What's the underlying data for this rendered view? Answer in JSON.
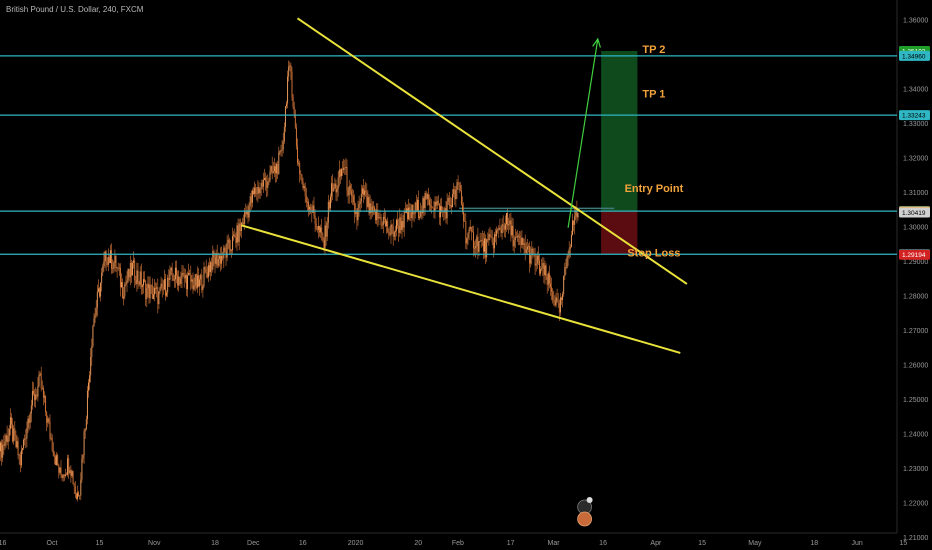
{
  "header": {
    "symbol_title": "British Pound / U.S. Dollar, 240, FXCM"
  },
  "colors": {
    "background": "#000000",
    "candle": "#d9793a",
    "level_line": "#2fb7c4",
    "trend_line": "#e8e23a",
    "forecast_arrow": "#3fcf3f",
    "target_zone": "#0e4a1c",
    "stop_zone": "#5a0c10",
    "annotation": "#f2a33a"
  },
  "chart_data": {
    "type": "candlestick",
    "title": "British Pound / U.S. Dollar, 240, FXCM",
    "xlabel": "",
    "ylabel": "",
    "ylim": [
      1.2055,
      1.3675
    ],
    "x_tick_labels": [
      {
        "label": "16",
        "x": 0.6
      },
      {
        "label": "Oct",
        "x": 15.6
      },
      {
        "label": "15",
        "x": 30
      },
      {
        "label": "Nov",
        "x": 46.6
      },
      {
        "label": "18",
        "x": 65
      },
      {
        "label": "Dec",
        "x": 76.6
      },
      {
        "label": "16",
        "x": 91.6
      },
      {
        "label": "2020",
        "x": 107.6
      },
      {
        "label": "20",
        "x": 126.6
      },
      {
        "label": "Feb",
        "x": 138.6
      },
      {
        "label": "17",
        "x": 154.6
      },
      {
        "label": "Mar",
        "x": 167.6
      },
      {
        "label": "16",
        "x": 182.6
      },
      {
        "label": "Apr",
        "x": 198.6
      },
      {
        "label": "15",
        "x": 212.6
      },
      {
        "label": "May",
        "x": 228.6
      },
      {
        "label": "18",
        "x": 246.6
      },
      {
        "label": "Jun",
        "x": 259.6
      },
      {
        "label": "15",
        "x": 273.6
      }
    ],
    "y_tick_labels": [
      "1.36000",
      "1.35000",
      "1.34000",
      "1.33000",
      "1.32000",
      "1.31000",
      "1.30000",
      "1.29000",
      "1.28000",
      "1.27000",
      "1.26000",
      "1.25000",
      "1.24000",
      "1.23000",
      "1.22000",
      "1.21000"
    ],
    "y_ticks": [
      1.36,
      1.35,
      1.34,
      1.33,
      1.32,
      1.31,
      1.3,
      1.29,
      1.28,
      1.27,
      1.26,
      1.25,
      1.24,
      1.23,
      1.22,
      1.21
    ],
    "price_anchors": [
      [
        0,
        1.235
      ],
      [
        3,
        1.242
      ],
      [
        6,
        1.232
      ],
      [
        9,
        1.248
      ],
      [
        12,
        1.255
      ],
      [
        15,
        1.24
      ],
      [
        18,
        1.228
      ],
      [
        21,
        1.232
      ],
      [
        23,
        1.222
      ],
      [
        24,
        1.225
      ],
      [
        26,
        1.247
      ],
      [
        28,
        1.272
      ],
      [
        30,
        1.282
      ],
      [
        32,
        1.292
      ],
      [
        35,
        1.289
      ],
      [
        37,
        1.282
      ],
      [
        40,
        1.288
      ],
      [
        44,
        1.282
      ],
      [
        48,
        1.28
      ],
      [
        52,
        1.286
      ],
      [
        56,
        1.285
      ],
      [
        60,
        1.283
      ],
      [
        64,
        1.29
      ],
      [
        68,
        1.292
      ],
      [
        72,
        1.298
      ],
      [
        74,
        1.303
      ],
      [
        77,
        1.31
      ],
      [
        80,
        1.313
      ],
      [
        83,
        1.316
      ],
      [
        85,
        1.32
      ],
      [
        86,
        1.33
      ],
      [
        87,
        1.343
      ],
      [
        88,
        1.345
      ],
      [
        89,
        1.332
      ],
      [
        90,
        1.32
      ],
      [
        92,
        1.31
      ],
      [
        94,
        1.306
      ],
      [
        96,
        1.3
      ],
      [
        98,
        1.295
      ],
      [
        100,
        1.31
      ],
      [
        102,
        1.312
      ],
      [
        104,
        1.318
      ],
      [
        106,
        1.308
      ],
      [
        108,
        1.303
      ],
      [
        110,
        1.31
      ],
      [
        112,
        1.304
      ],
      [
        116,
        1.302
      ],
      [
        118,
        1.298
      ],
      [
        122,
        1.302
      ],
      [
        126,
        1.305
      ],
      [
        130,
        1.308
      ],
      [
        134,
        1.304
      ],
      [
        137,
        1.308
      ],
      [
        139,
        1.312
      ],
      [
        141,
        1.298
      ],
      [
        144,
        1.296
      ],
      [
        147,
        1.294
      ],
      [
        150,
        1.297
      ],
      [
        153,
        1.302
      ],
      [
        156,
        1.296
      ],
      [
        159,
        1.294
      ],
      [
        162,
        1.29
      ],
      [
        165,
        1.286
      ],
      [
        168,
        1.279
      ],
      [
        169,
        1.275
      ],
      [
        170,
        1.278
      ],
      [
        171,
        1.286
      ],
      [
        172,
        1.294
      ],
      [
        173,
        1.298
      ],
      [
        174,
        1.303
      ],
      [
        175,
        1.3045
      ]
    ],
    "last_candle_index": 175,
    "horizontal_levels": [
      {
        "name": "TP 2",
        "price": 1.3496
      },
      {
        "name": "TP 1",
        "price": 1.33243
      },
      {
        "name": "Entry Point",
        "price": 1.3046
      },
      {
        "name": "Stop Loss",
        "price": 1.2921
      }
    ],
    "annotations": [
      {
        "text": "TP 2",
        "index": 198,
        "price": 1.3505
      },
      {
        "text": "TP 1",
        "index": 198,
        "price": 1.3375
      },
      {
        "text": "Entry Point",
        "index": 198,
        "price": 1.3102
      },
      {
        "text": "Stop Loss",
        "index": 198,
        "price": 1.2915
      }
    ],
    "price_scale_labels": [
      {
        "text": "1.35102",
        "price": 1.35102,
        "bg": "#1f9e2a",
        "fg": "#ffffff"
      },
      {
        "text": "1.34960",
        "price": 1.3496,
        "bg": "#2fb7c4",
        "fg": "#000000"
      },
      {
        "text": "1.33243",
        "price": 1.33243,
        "bg": "#2fb7c4",
        "fg": "#000000"
      },
      {
        "text": "1.30460",
        "price": 1.3046,
        "bg": "#2fb7c4",
        "fg": "#000000"
      },
      {
        "text": "1.30449",
        "price": 1.30449,
        "bg": "#f2a33a",
        "fg": "#000000"
      },
      {
        "text": "1.30419",
        "price": 1.30419,
        "bg": "#d0d0d0",
        "fg": "#000000"
      },
      {
        "text": "1.29210",
        "price": 1.2921,
        "bg": "#2fb7c4",
        "fg": "#000000"
      },
      {
        "text": "1.29194",
        "price": 1.29194,
        "bg": "#d32222",
        "fg": "#ffffff"
      }
    ],
    "trend_lines": [
      {
        "name": "upper-trendline",
        "from": [
          90,
          1.3605
        ],
        "to": [
          208,
          1.2835
        ]
      },
      {
        "name": "lower-trendline",
        "from": [
          73,
          1.3005
        ],
        "to": [
          206,
          1.2635
        ]
      }
    ],
    "forecast_arrow": {
      "from": [
        172,
        1.2998
      ],
      "to": [
        181,
        1.3545
      ]
    },
    "position_box": {
      "start_index": 182,
      "end_index": 193,
      "target": 1.35102,
      "entry": 1.3046,
      "stop": 1.2921
    },
    "entry_marker": {
      "start_index": 139,
      "end_index": 186,
      "price": 1.3054
    }
  }
}
